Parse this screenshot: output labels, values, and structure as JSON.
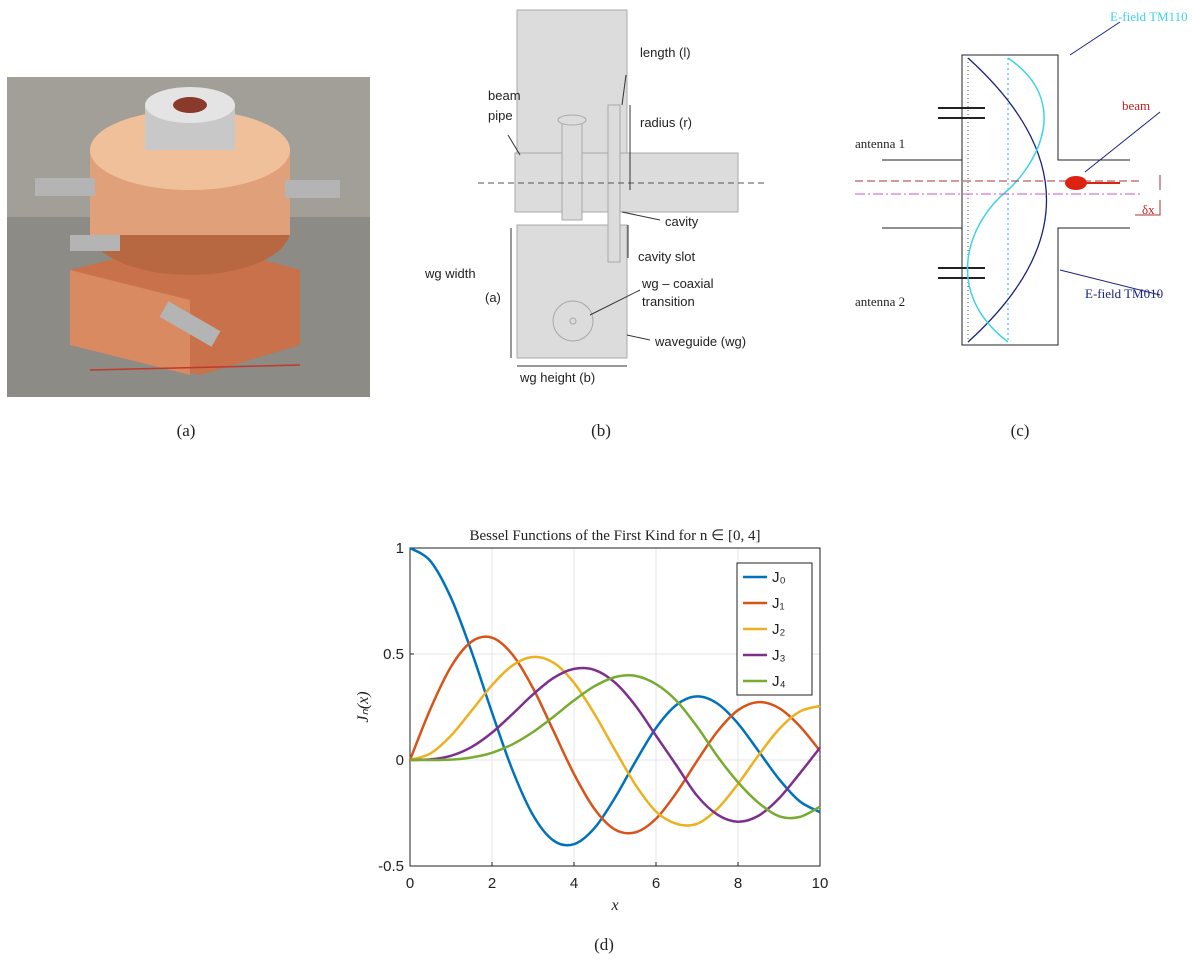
{
  "panels": [
    {
      "caption": "(a)"
    },
    {
      "caption": "(b)",
      "labels": [
        "length (l)",
        "beam",
        "pipe",
        "radius (r)",
        "cavity",
        "cavity slot",
        "wg width",
        "(a)",
        "wg – coaxial",
        "transition",
        "waveguide (wg)",
        "wg height (b)"
      ]
    },
    {
      "caption": "(c)",
      "labels": [
        "E-field TM110",
        "beam",
        "antenna 1",
        "δx",
        "antenna 2",
        "E-field TM010"
      ]
    },
    {
      "caption": "(d)"
    }
  ],
  "chart_data": {
    "type": "line",
    "title": "Bessel Functions of the First Kind for n ∈ [0, 4]",
    "xlabel": "x",
    "ylabel": "Jₙ(x)",
    "x": [
      0,
      0.5,
      1,
      1.5,
      2,
      2.5,
      3,
      3.5,
      4,
      4.5,
      5,
      5.5,
      6,
      6.5,
      7,
      7.5,
      8,
      8.5,
      9,
      9.5,
      10
    ],
    "series": [
      {
        "name": "J₀",
        "color": "#0072bd",
        "values": [
          1,
          0.938,
          0.765,
          0.512,
          0.224,
          -0.048,
          -0.26,
          -0.38,
          -0.397,
          -0.321,
          -0.178,
          -0.007,
          0.151,
          0.26,
          0.3,
          0.266,
          0.172,
          0.042,
          -0.09,
          -0.194,
          -0.246
        ]
      },
      {
        "name": "J₁",
        "color": "#d95319",
        "values": [
          0,
          0.242,
          0.44,
          0.558,
          0.577,
          0.497,
          0.339,
          0.137,
          -0.066,
          -0.231,
          -0.328,
          -0.341,
          -0.277,
          -0.154,
          -0.005,
          0.135,
          0.235,
          0.273,
          0.245,
          0.161,
          0.043
        ]
      },
      {
        "name": "J₂",
        "color": "#edb120",
        "values": [
          0,
          0.031,
          0.115,
          0.232,
          0.353,
          0.446,
          0.486,
          0.459,
          0.364,
          0.217,
          0.047,
          -0.117,
          -0.243,
          -0.301,
          -0.301,
          -0.23,
          -0.113,
          0.022,
          0.145,
          0.228,
          0.255
        ]
      },
      {
        "name": "J₃",
        "color": "#7e2f8e",
        "values": [
          0,
          0.003,
          0.02,
          0.061,
          0.129,
          0.217,
          0.309,
          0.387,
          0.43,
          0.425,
          0.365,
          0.256,
          0.115,
          -0.026,
          -0.168,
          -0.258,
          -0.291,
          -0.263,
          -0.181,
          -0.065,
          0.058
        ]
      },
      {
        "name": "J₄",
        "color": "#77ac30",
        "values": [
          0,
          0,
          0.002,
          0.012,
          0.034,
          0.074,
          0.132,
          0.204,
          0.281,
          0.348,
          0.391,
          0.397,
          0.358,
          0.279,
          0.158,
          0.017,
          -0.105,
          -0.202,
          -0.265,
          -0.269,
          -0.22
        ]
      }
    ],
    "xlim": [
      0,
      10
    ],
    "ylim": [
      -0.5,
      1
    ],
    "xticks": [
      0,
      2,
      4,
      6,
      8,
      10
    ],
    "yticks": [
      -0.5,
      0,
      0.5,
      1
    ],
    "grid": true,
    "legend": "upper right"
  }
}
